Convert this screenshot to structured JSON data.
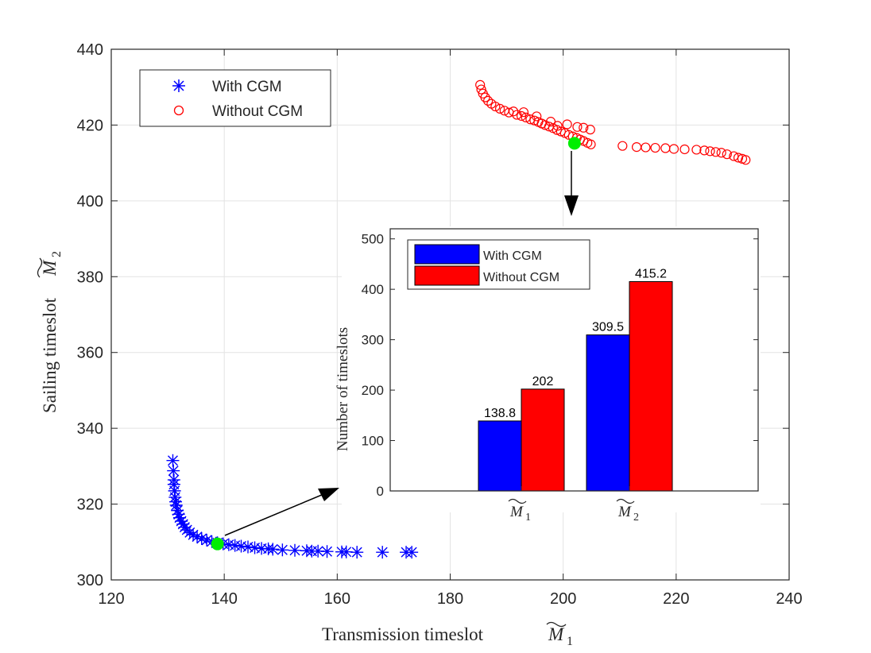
{
  "chart_data": [
    {
      "type": "scatter",
      "xlabel": "Transmission timeslot",
      "ylabel": "Sailing timeslot",
      "xlabel_symbol": "M",
      "xlabel_sub": "1",
      "ylabel_symbol": "M",
      "ylabel_sub": "2",
      "xlim": [
        120,
        240
      ],
      "ylim": [
        300,
        440
      ],
      "xticks": [
        120,
        140,
        160,
        180,
        200,
        220,
        240
      ],
      "yticks": [
        300,
        320,
        340,
        360,
        380,
        400,
        420,
        440
      ],
      "grid": true,
      "legend_position": "top-left",
      "series": [
        {
          "name": "With CGM",
          "marker": "asterisk",
          "color": "#0000ff",
          "points": [
            [
              130.9,
              331.5
            ],
            [
              131.0,
              328.8
            ],
            [
              131.1,
              326.4
            ],
            [
              131.1,
              325.2
            ],
            [
              131.2,
              323.5
            ],
            [
              131.3,
              321.8
            ],
            [
              131.4,
              320.6
            ],
            [
              131.5,
              319.7
            ],
            [
              131.7,
              318.3
            ],
            [
              131.9,
              317.3
            ],
            [
              132.1,
              316.4
            ],
            [
              132.4,
              315.5
            ],
            [
              132.7,
              314.7
            ],
            [
              133.0,
              313.9
            ],
            [
              133.4,
              313.2
            ],
            [
              133.9,
              312.5
            ],
            [
              134.5,
              311.9
            ],
            [
              135.2,
              311.4
            ],
            [
              136.0,
              310.9
            ],
            [
              136.9,
              310.5
            ],
            [
              137.8,
              310.1
            ],
            [
              138.8,
              309.8
            ],
            [
              139.8,
              309.5
            ],
            [
              140.8,
              309.3
            ],
            [
              141.9,
              309.1
            ],
            [
              143.0,
              308.9
            ],
            [
              144.2,
              308.7
            ],
            [
              145.4,
              308.5
            ],
            [
              146.6,
              308.3
            ],
            [
              147.8,
              308.2
            ],
            [
              148.6,
              308.1
            ],
            [
              150.3,
              307.9
            ],
            [
              152.5,
              307.8
            ],
            [
              154.6,
              307.7
            ],
            [
              155.5,
              307.6
            ],
            [
              156.6,
              307.6
            ],
            [
              158.2,
              307.5
            ],
            [
              160.8,
              307.4
            ],
            [
              161.6,
              307.4
            ],
            [
              163.5,
              307.3
            ],
            [
              168.0,
              307.3
            ],
            [
              172.2,
              307.3
            ],
            [
              173.2,
              307.3
            ]
          ]
        },
        {
          "name": "Without CGM",
          "marker": "circle",
          "color": "#ff0000",
          "points": [
            [
              185.3,
              430.6
            ],
            [
              185.5,
              429.4
            ],
            [
              185.8,
              428.3
            ],
            [
              186.2,
              427.3
            ],
            [
              186.7,
              426.4
            ],
            [
              187.3,
              425.6
            ],
            [
              188.0,
              424.9
            ],
            [
              188.8,
              424.3
            ],
            [
              189.6,
              423.8
            ],
            [
              190.4,
              423.3
            ],
            [
              191.2,
              423.6
            ],
            [
              191.8,
              422.7
            ],
            [
              192.6,
              422.4
            ],
            [
              193.4,
              422.0
            ],
            [
              194.2,
              421.5
            ],
            [
              194.9,
              421.2
            ],
            [
              195.6,
              420.8
            ],
            [
              196.2,
              420.4
            ],
            [
              196.8,
              420.0
            ],
            [
              197.5,
              419.6
            ],
            [
              198.2,
              419.2
            ],
            [
              198.9,
              418.7
            ],
            [
              199.6,
              418.3
            ],
            [
              200.3,
              417.9
            ],
            [
              201.0,
              417.4
            ],
            [
              201.7,
              417.0
            ],
            [
              202.4,
              416.6
            ],
            [
              203.0,
              416.2
            ],
            [
              203.6,
              415.8
            ],
            [
              204.3,
              415.3
            ],
            [
              204.9,
              414.9
            ],
            [
              202.5,
              419.5
            ],
            [
              203.6,
              419.3
            ],
            [
              204.8,
              418.8
            ],
            [
              199.0,
              419.8
            ],
            [
              197.8,
              420.9
            ],
            [
              200.7,
              420.2
            ],
            [
              193.0,
              423.4
            ],
            [
              195.3,
              422.3
            ],
            [
              210.5,
              414.5
            ],
            [
              213.0,
              414.2
            ],
            [
              214.6,
              414.1
            ],
            [
              216.3,
              414.0
            ],
            [
              218.1,
              413.9
            ],
            [
              219.6,
              413.7
            ],
            [
              221.5,
              413.6
            ],
            [
              223.6,
              413.5
            ],
            [
              225.0,
              413.3
            ],
            [
              226.0,
              413.1
            ],
            [
              227.0,
              412.9
            ],
            [
              228.0,
              412.7
            ],
            [
              229.0,
              412.3
            ],
            [
              230.2,
              411.8
            ],
            [
              231.0,
              411.4
            ],
            [
              231.7,
              411.1
            ],
            [
              232.3,
              410.8
            ]
          ]
        }
      ],
      "highlighted_points": [
        {
          "color": "#00ee00",
          "x": 138.8,
          "y": 309.5
        },
        {
          "color": "#00ee00",
          "x": 202.0,
          "y": 415.2
        }
      ]
    },
    {
      "type": "bar",
      "ylabel": "Number of timeslots",
      "categories_symbol": "M",
      "categories": [
        "1",
        "2"
      ],
      "ylim": [
        0,
        520
      ],
      "yticks": [
        0,
        100,
        200,
        300,
        400,
        500
      ],
      "legend_position": "top-left",
      "series": [
        {
          "name": "With CGM",
          "color": "#0000ff",
          "values": [
            138.8,
            309.5
          ],
          "labels": [
            "138.8",
            "309.5"
          ]
        },
        {
          "name": "Without CGM",
          "color": "#ff0000",
          "values": [
            202,
            415.2
          ],
          "labels": [
            "202",
            "415.2"
          ]
        }
      ]
    }
  ]
}
